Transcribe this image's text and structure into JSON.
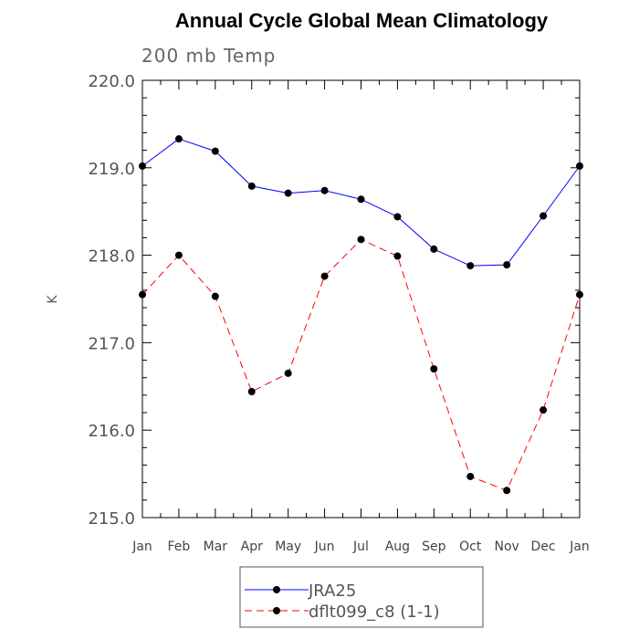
{
  "chart_data": {
    "type": "line",
    "title": "Annual Cycle Global Mean Climatology",
    "subtitle": "200 mb Temp",
    "xlabel": "",
    "ylabel": "K",
    "categories": [
      "Jan",
      "Feb",
      "Mar",
      "Apr",
      "May",
      "Jun",
      "Jul",
      "Aug",
      "Sep",
      "Oct",
      "Nov",
      "Dec",
      "Jan"
    ],
    "ylim": [
      215.0,
      220.0
    ],
    "yticks": [
      "215.0",
      "216.0",
      "217.0",
      "218.0",
      "219.0",
      "220.0"
    ],
    "grid": false,
    "legend_position": "bottom",
    "series": [
      {
        "name": "JRA25",
        "color": "#0000ff",
        "dashed": false,
        "values": [
          219.02,
          219.33,
          219.19,
          218.79,
          218.71,
          218.74,
          218.64,
          218.44,
          218.07,
          217.88,
          217.89,
          218.45,
          219.02
        ]
      },
      {
        "name": "dflt099_c8 (1-1)",
        "color": "#ff0000",
        "dashed": true,
        "values": [
          217.55,
          218.0,
          217.53,
          216.44,
          216.65,
          217.76,
          218.18,
          217.99,
          216.7,
          215.47,
          215.31,
          216.23,
          217.55
        ]
      }
    ]
  }
}
